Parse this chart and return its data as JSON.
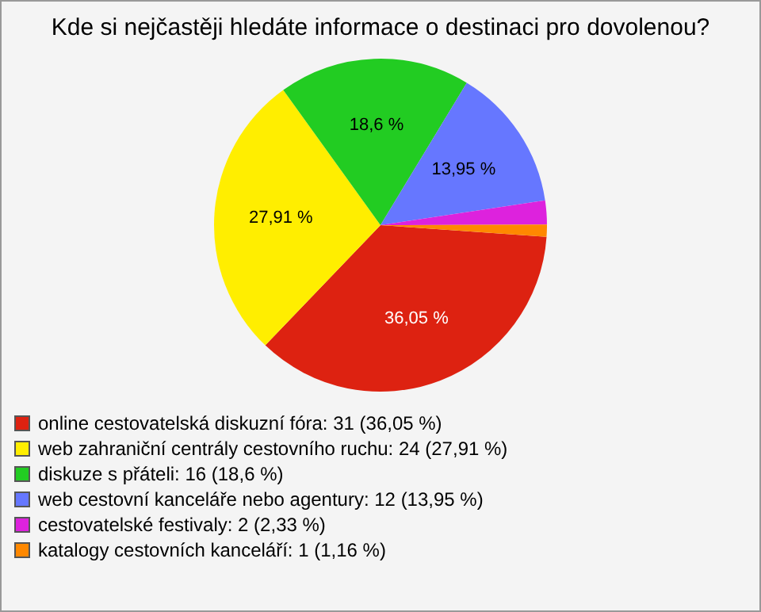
{
  "chart_data": {
    "type": "pie",
    "title": "Kde si nejčastěji hledáte informace o destinaci pro dovolenou?",
    "categories": [
      "online cestovatelská diskuzní fóra: 31 (36,05 %)",
      "web zahraniční centrály cestovního ruchu: 24 (27,91 %)",
      "diskuze s přáteli: 16 (18,6 %)",
      "web cestovní kanceláře nebo agentury: 12 (13,95 %)",
      "cestovatelské festivaly: 2 (2,33 %)",
      "katalogy cestovních kanceláří: 1 (1,16 %)"
    ],
    "values": [
      36.05,
      27.91,
      18.6,
      13.95,
      2.33,
      1.16
    ],
    "value_labels": [
      "36,05 %",
      "27,91 %",
      "18,6 %",
      "13,95 %",
      null,
      null
    ],
    "colors": [
      "#dd2211",
      "#ffee00",
      "#22cc22",
      "#6677ff",
      "#dd22dd",
      "#ff8800"
    ],
    "legend": "bottom left"
  }
}
